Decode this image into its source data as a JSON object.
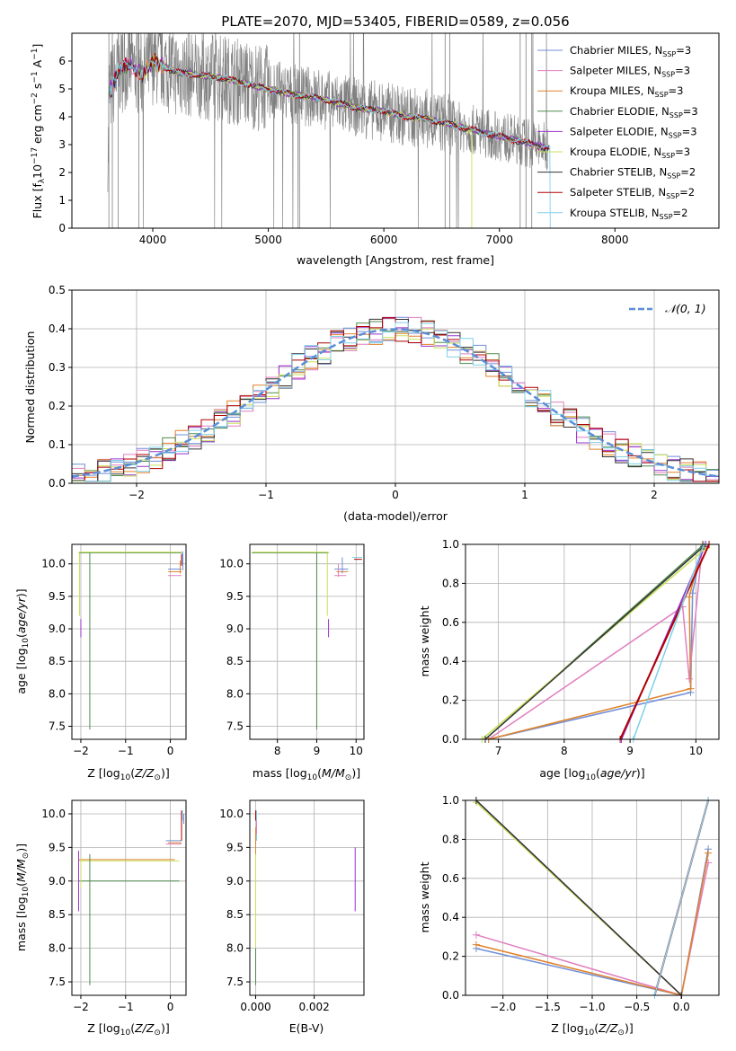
{
  "colors": {
    "observed": "#808080",
    "grid": "#b0b0b0",
    "gauss": "#5b8ed6",
    "series": [
      "#6f8fd8",
      "#e07fbf",
      "#e0822a",
      "#4f8a4f",
      "#9932cc",
      "#c9e05a",
      "#333333",
      "#b00000",
      "#7fd0e8"
    ]
  },
  "chart_data": [
    {
      "id": "spectrum",
      "type": "line",
      "title": "PLATE=2070, MJD=53405, FIBERID=0589, z=0.056",
      "xlabel": "wavelength [Angstrom, rest frame]",
      "ylabel": "Flux [fλ 10⁻¹⁷ erg cm⁻² s⁻¹ A⁻¹]",
      "xlim": [
        3300,
        8900
      ],
      "ylim": [
        0,
        7
      ],
      "xticks": [
        4000,
        5000,
        6000,
        7000,
        8000
      ],
      "yticks": [
        0,
        1,
        2,
        3,
        4,
        5,
        6
      ],
      "legend_position": "top-right",
      "legend": [
        {
          "label": "Chabrier MILES, N_SSP=3",
          "text": "Chabrier MILES, N",
          "sub": "SSP",
          "tail": "=3"
        },
        {
          "label": "Salpeter MILES, N_SSP=3",
          "text": "Salpeter MILES, N",
          "sub": "SSP",
          "tail": "=3"
        },
        {
          "label": "Kroupa MILES, N_SSP=3",
          "text": "Kroupa MILES, N",
          "sub": "SSP",
          "tail": "=3"
        },
        {
          "label": "Chabrier ELODIE, N_SSP=3",
          "text": "Chabrier ELODIE, N",
          "sub": "SSP",
          "tail": "=3"
        },
        {
          "label": "Salpeter ELODIE, N_SSP=3",
          "text": "Salpeter ELODIE, N",
          "sub": "SSP",
          "tail": "=3"
        },
        {
          "label": "Kroupa ELODIE, N_SSP=3",
          "text": "Kroupa ELODIE, N",
          "sub": "SSP",
          "tail": "=3"
        },
        {
          "label": "Chabrier STELIB, N_SSP=2",
          "text": "Chabrier STELIB, N",
          "sub": "SSP",
          "tail": "=2"
        },
        {
          "label": "Salpeter STELIB, N_SSP=2",
          "text": "Salpeter STELIB, N",
          "sub": "SSP",
          "tail": "=2"
        },
        {
          "label": "Kroupa STELIB, N_SSP=2",
          "text": "Kroupa STELIB, N",
          "sub": "SSP",
          "tail": "=2"
        }
      ],
      "model_continuum": {
        "x": [
          3620,
          3700,
          3800,
          3900,
          4000,
          4100,
          4200,
          4400,
          4600,
          4800,
          5000,
          5200,
          5400,
          5600,
          5800,
          6000,
          6200,
          6400,
          6600,
          6800,
          7000,
          7200,
          7400
        ],
        "y": [
          4.8,
          5.6,
          5.9,
          5.5,
          6.0,
          5.8,
          5.6,
          5.5,
          5.4,
          5.2,
          5.0,
          4.8,
          4.7,
          4.5,
          4.3,
          4.2,
          4.0,
          3.9,
          3.7,
          3.5,
          3.3,
          3.1,
          2.9
        ]
      }
    },
    {
      "id": "residuals",
      "type": "line",
      "xlabel": "(data-model)/error",
      "ylabel": "Normed distribution",
      "xlim": [
        -2.5,
        2.5
      ],
      "ylim": [
        0,
        0.5
      ],
      "xticks": [
        -2,
        -1,
        0,
        1,
        2
      ],
      "xticklabels": [
        "−2",
        "−1",
        "0",
        "1",
        "2"
      ],
      "yticks": [
        0.0,
        0.1,
        0.2,
        0.3,
        0.4,
        0.5
      ],
      "yticklabels": [
        "0.0",
        "0.1",
        "0.2",
        "0.3",
        "0.4",
        "0.5"
      ],
      "gauss_label": "N(0,1)",
      "legend_position": "top-right"
    },
    {
      "id": "age-vs-Z",
      "type": "scatter",
      "xlabel": "Z [log10(Z/Z☉)]",
      "ylabel": "age  [log10(age/yr)]",
      "xlim": [
        -2.2,
        0.35
      ],
      "ylim": [
        7.3,
        10.3
      ],
      "xticks": [
        -2,
        -1,
        0
      ],
      "xticklabels": [
        "−2",
        "−1",
        "0"
      ],
      "yticks": [
        7.5,
        8.0,
        8.5,
        9.0,
        9.5,
        10.0
      ],
      "yticklabels": [
        "7.5",
        "8.0",
        "8.5",
        "9.0",
        "9.5",
        "10.0"
      ]
    },
    {
      "id": "age-vs-mass",
      "type": "scatter",
      "xlabel": "mass [log10(M/M☉)]",
      "xlim": [
        7.3,
        10.2
      ],
      "ylim": [
        7.3,
        10.3
      ],
      "xticks": [
        8,
        9,
        10
      ],
      "xticklabels": [
        "8",
        "9",
        "10"
      ],
      "yticks": [
        7.5,
        8.0,
        8.5,
        9.0,
        9.5,
        10.0
      ],
      "yticklabels": [
        "7.5",
        "8.0",
        "8.5",
        "9.0",
        "9.5",
        "10.0"
      ]
    },
    {
      "id": "cumulative-age",
      "type": "line",
      "xlabel": "age  [log10(age/yr)]",
      "ylabel": "mass weight",
      "xlim": [
        6.5,
        10.35
      ],
      "ylim": [
        0,
        1
      ],
      "xticks": [
        7,
        8,
        9,
        10
      ],
      "xticklabels": [
        "7",
        "8",
        "9",
        "10"
      ],
      "yticks": [
        0.0,
        0.2,
        0.4,
        0.6,
        0.8,
        1.0
      ],
      "yticklabels": [
        "0.0",
        "0.2",
        "0.4",
        "0.6",
        "0.8",
        "1.0"
      ],
      "series": [
        {
          "x": [
            6.85,
            9.92,
            9.95,
            10.1
          ],
          "y": [
            0.0,
            0.24,
            0.75,
            1.0
          ]
        },
        {
          "x": [
            6.85,
            9.8,
            9.9,
            10.1
          ],
          "y": [
            0.0,
            0.68,
            0.31,
            1.0
          ]
        },
        {
          "x": [
            6.85,
            9.92,
            9.9,
            10.1
          ],
          "y": [
            0.0,
            0.26,
            0.73,
            1.0
          ]
        },
        {
          "x": [
            6.8,
            10.12
          ],
          "y": [
            0.0,
            1.0
          ]
        },
        {
          "x": [
            8.87,
            10.15
          ],
          "y": [
            0.0,
            1.0
          ]
        },
        {
          "x": [
            6.75,
            10.15
          ],
          "y": [
            0.0,
            0.98
          ]
        },
        {
          "x": [
            6.8,
            10.12
          ],
          "y": [
            0.0,
            0.99
          ]
        },
        {
          "x": [
            8.85,
            10.2
          ],
          "y": [
            0.0,
            1.0
          ]
        },
        {
          "x": [
            9.05,
            10.12
          ],
          "y": [
            0.0,
            1.0
          ]
        }
      ]
    },
    {
      "id": "mass-vs-Z",
      "type": "scatter",
      "xlabel": "Z [log10(Z/Z☉)]",
      "ylabel": "mass [log10(M/M☉)]",
      "xlim": [
        -2.2,
        0.35
      ],
      "ylim": [
        7.3,
        10.2
      ],
      "xticks": [
        -2,
        -1,
        0
      ],
      "xticklabels": [
        "−2",
        "−1",
        "0"
      ],
      "yticks": [
        7.5,
        8.0,
        8.5,
        9.0,
        9.5,
        10.0
      ],
      "yticklabels": [
        "7.5",
        "8.0",
        "8.5",
        "9.0",
        "9.5",
        "10.0"
      ]
    },
    {
      "id": "mass-vs-ebv",
      "type": "scatter",
      "xlabel": "E(B-V)",
      "xlim": [
        -0.0002,
        0.0037
      ],
      "ylim": [
        7.3,
        10.2
      ],
      "xticks": [
        0.0,
        0.002
      ],
      "xticklabels": [
        "0.000",
        "0.002"
      ],
      "yticks": [
        7.5,
        8.0,
        8.5,
        9.0,
        9.5,
        10.0
      ],
      "yticklabels": [
        "7.5",
        "8.0",
        "8.5",
        "9.0",
        "9.5",
        "10.0"
      ]
    },
    {
      "id": "cumulative-Z",
      "type": "line",
      "xlabel": "Z [log10(Z/Z☉)]",
      "ylabel": "mass weight",
      "xlim": [
        -2.42,
        0.42
      ],
      "ylim": [
        0,
        1
      ],
      "xticks": [
        -2.0,
        -1.5,
        -1.0,
        -0.5,
        0.0
      ],
      "xticklabels": [
        "−2.0",
        "−1.5",
        "−1.0",
        "−0.5",
        "0.0"
      ],
      "yticks": [
        0.0,
        0.2,
        0.4,
        0.6,
        0.8,
        1.0
      ],
      "yticklabels": [
        "0.0",
        "0.2",
        "0.4",
        "0.6",
        "0.8",
        "1.0"
      ],
      "series": [
        {
          "x": [
            -2.3,
            0.0,
            0.3
          ],
          "y": [
            0.24,
            0.0,
            0.75
          ]
        },
        {
          "x": [
            -2.3,
            0.0,
            0.3
          ],
          "y": [
            0.31,
            0.0,
            0.68
          ]
        },
        {
          "x": [
            -2.3,
            0.0,
            0.3
          ],
          "y": [
            0.26,
            0.0,
            0.73
          ]
        },
        {
          "x": [
            -2.3,
            0.0
          ],
          "y": [
            1.0,
            0.0
          ]
        },
        {
          "x": [
            -2.3,
            0.0
          ],
          "y": [
            1.0,
            0.0
          ]
        },
        {
          "x": [
            -2.3,
            0.0
          ],
          "y": [
            0.99,
            0.0
          ]
        },
        {
          "x": [
            -2.3,
            0.0
          ],
          "y": [
            1.0,
            0.0
          ]
        },
        {
          "x": [
            -0.3,
            0.3
          ],
          "y": [
            0.0,
            1.0
          ]
        },
        {
          "x": [
            -0.3,
            0.3
          ],
          "y": [
            0.0,
            1.0
          ]
        }
      ]
    }
  ]
}
